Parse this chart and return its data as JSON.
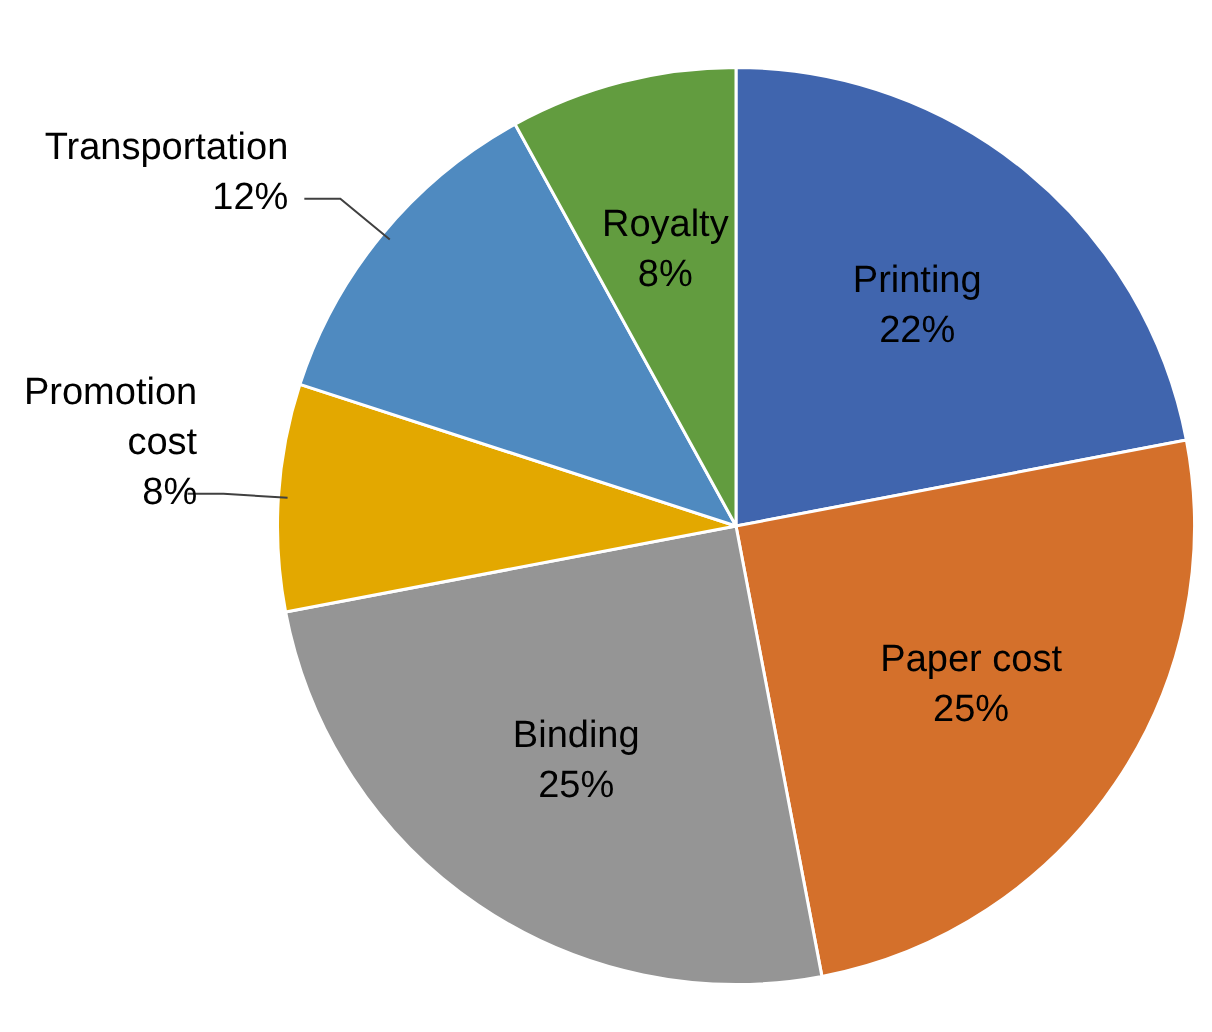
{
  "chart_data": {
    "type": "pie",
    "categories": [
      "Printing",
      "Paper cost",
      "Binding",
      "Promotion cost",
      "Transportation",
      "Royalty"
    ],
    "values": [
      22,
      25,
      25,
      8,
      12,
      8
    ],
    "value_labels": [
      "22%",
      "25%",
      "25%",
      "8%",
      "12%",
      "8%"
    ],
    "colors": [
      "#4065ae",
      "#d4702b",
      "#959595",
      "#e3a800",
      "#4f8ac0",
      "#629c3f"
    ],
    "legend": false
  }
}
